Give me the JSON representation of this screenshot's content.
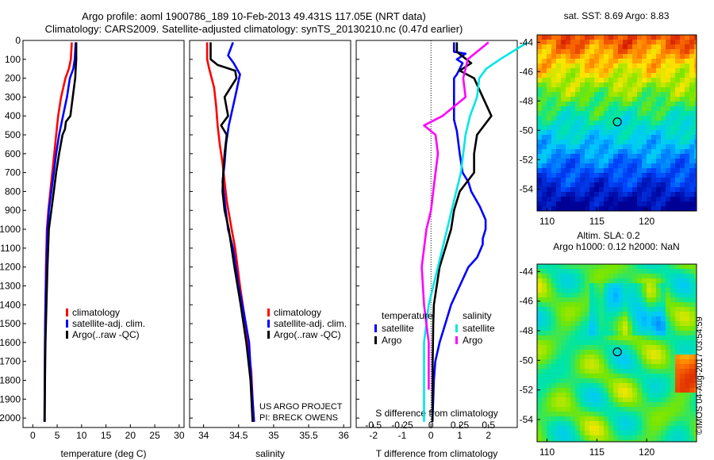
{
  "header": {
    "line1": "Argo profile: aoml 1900786_189 10-Feb-2013 49.431S 117.05E (NRT data)",
    "line2": "Climatology: CARS2009. Satellite-adjusted climatology: synTS_20130210.nc (0.47d earlier)"
  },
  "credit": {
    "line1": "US ARGO PROJECT",
    "line2": "PI: BRECK OWENS"
  },
  "stamp": "©IMOS 04-Aug-2017 03:54:59",
  "colors": {
    "red": "#ff0000",
    "blue": "#0000ff",
    "black": "#000000",
    "cyan": "#00e6e6",
    "magenta": "#ff00ff"
  },
  "chart_data": [
    {
      "type": "line",
      "xlabel": "temperature (deg C)",
      "ylabel": "",
      "xlim": [
        -2,
        31
      ],
      "ylim": [
        2050,
        0
      ],
      "xticks": [
        0,
        5,
        10,
        15,
        20,
        25,
        30
      ],
      "yticks": [
        0,
        100,
        200,
        300,
        400,
        500,
        600,
        700,
        800,
        900,
        1000,
        1100,
        1200,
        1300,
        1400,
        1500,
        1600,
        1700,
        1800,
        1900,
        2000
      ],
      "legend": [
        "climatology",
        "satellite-adj. clim.",
        "Argo(..raw -QC)"
      ],
      "series": [
        {
          "name": "climatology",
          "color": "red",
          "x": [
            8.0,
            7.8,
            7.4,
            6.7,
            5.8,
            5.2,
            4.8,
            4.4,
            4.0,
            3.6,
            3.2,
            2.9,
            2.7,
            2.6,
            2.5,
            2.45,
            2.4
          ],
          "y": [
            10,
            100,
            150,
            200,
            300,
            400,
            500,
            600,
            700,
            800,
            900,
            1000,
            1200,
            1400,
            1600,
            1800,
            2020
          ]
        },
        {
          "name": "satellite-adj. clim.",
          "color": "blue",
          "x": [
            8.8,
            8.6,
            8.3,
            7.6,
            7.0,
            6.2,
            5.4,
            4.8,
            4.3,
            3.8,
            3.3,
            3.0,
            2.8,
            2.6,
            2.5,
            2.45,
            2.4
          ],
          "y": [
            10,
            100,
            150,
            200,
            300,
            400,
            500,
            600,
            700,
            800,
            900,
            1000,
            1200,
            1400,
            1600,
            1800,
            2020
          ]
        },
        {
          "name": "Argo(..raw -QC)",
          "color": "black",
          "x": [
            8.9,
            8.9,
            8.8,
            8.7,
            8.2,
            7.7,
            6.8,
            6.6,
            6.1,
            5.4,
            4.8,
            4.3,
            3.8,
            3.3,
            3.0,
            2.8,
            2.6,
            2.5,
            2.45
          ],
          "y": [
            10,
            100,
            150,
            200,
            300,
            400,
            430,
            470,
            500,
            600,
            700,
            800,
            900,
            1000,
            1200,
            1400,
            1600,
            1800,
            2020
          ]
        }
      ]
    },
    {
      "type": "line",
      "xlabel": "salinity",
      "ylabel": "",
      "xlim": [
        33.8,
        36.1
      ],
      "ylim": [
        2050,
        0
      ],
      "xticks": [
        34,
        34.5,
        35,
        35.5,
        36
      ],
      "legend": [
        "climatology",
        "satellite-adj. clim.",
        "Argo(..raw -QC)"
      ],
      "series": [
        {
          "name": "climatology",
          "color": "red",
          "x": [
            34.05,
            34.05,
            34.08,
            34.15,
            34.18,
            34.2,
            34.23,
            34.27,
            34.3,
            34.33,
            34.4,
            34.45,
            34.52,
            34.58,
            34.63,
            34.68,
            34.7,
            34.72
          ],
          "y": [
            10,
            100,
            150,
            250,
            350,
            450,
            550,
            650,
            750,
            850,
            1000,
            1100,
            1300,
            1450,
            1600,
            1750,
            1900,
            2020
          ]
        },
        {
          "name": "satellite-adj. clim.",
          "color": "blue",
          "x": [
            34.42,
            34.35,
            34.43,
            34.52,
            34.45,
            34.36,
            34.32,
            34.3,
            34.27,
            34.3,
            34.35,
            34.42,
            34.5,
            34.58,
            34.65,
            34.68,
            34.72
          ],
          "y": [
            10,
            80,
            120,
            180,
            300,
            450,
            550,
            650,
            750,
            850,
            1000,
            1100,
            1300,
            1450,
            1600,
            1800,
            2020
          ]
        },
        {
          "name": "Argo(..raw -QC)",
          "color": "black",
          "x": [
            34.1,
            34.1,
            34.2,
            34.45,
            34.47,
            34.3,
            34.35,
            34.25,
            34.33,
            34.3,
            34.28,
            34.27,
            34.3,
            34.36,
            34.44,
            34.53,
            34.61,
            34.67,
            34.7
          ],
          "y": [
            10,
            100,
            130,
            160,
            200,
            300,
            400,
            450,
            500,
            600,
            700,
            800,
            900,
            1000,
            1200,
            1400,
            1600,
            1800,
            2020
          ]
        }
      ]
    },
    {
      "type": "line",
      "xlabel": "T difference from climatology",
      "x2label": "S difference from climatology",
      "xlim": [
        -2.6,
        3.0
      ],
      "ylim": [
        2050,
        0
      ],
      "xticks": [
        -2,
        -1,
        0,
        1,
        2
      ],
      "x2ticks": [
        -0.5,
        -0.25,
        0,
        0.25,
        0.5
      ],
      "legend_groups": [
        {
          "title": "temperature",
          "entries": [
            "satellite",
            "Argo"
          ]
        },
        {
          "title": "salinity",
          "entries": [
            "satellite",
            "Argo"
          ]
        }
      ],
      "series": [
        {
          "name": "temperature satellite",
          "color": "blue",
          "x": [
            0.8,
            0.8,
            1.2,
            0.9,
            1.1,
            1.0,
            0.9,
            0.8,
            0.8,
            0.8,
            0.8,
            0.9,
            1.0,
            1.1,
            1.3,
            1.4,
            1.7,
            1.9,
            1.9,
            1.8,
            1.8,
            1.6,
            1.3,
            1.0,
            0.7,
            0.5,
            0.3,
            0.15,
            0.1,
            0.08,
            0.05
          ],
          "y": [
            10,
            60,
            70,
            100,
            120,
            150,
            180,
            200,
            280,
            350,
            420,
            480,
            600,
            700,
            750,
            800,
            880,
            950,
            1000,
            1050,
            1080,
            1150,
            1200,
            1300,
            1400,
            1500,
            1600,
            1700,
            1800,
            1900,
            2020
          ]
        },
        {
          "name": "temperature Argo",
          "color": "black",
          "x": [
            0.9,
            0.9,
            1.4,
            1.0,
            1.5,
            1.8,
            2.1,
            1.6,
            1.5,
            1.5,
            1.0,
            0.8,
            0.7,
            0.5,
            0.3,
            0.2,
            0.1,
            0.08,
            0.06,
            0.05
          ],
          "y": [
            10,
            60,
            120,
            160,
            200,
            300,
            400,
            500,
            600,
            700,
            800,
            900,
            1000,
            1100,
            1200,
            1300,
            1400,
            1500,
            1700,
            2020
          ]
        },
        {
          "name": "salinity satellite",
          "color": "cyan",
          "x": [
            0.84,
            0.6,
            0.48,
            0.42,
            0.4,
            0.34,
            0.3,
            0.26,
            0.22,
            0.14,
            0.06,
            -0.02,
            -0.06,
            -0.06,
            -0.06
          ],
          "y": [
            10,
            100,
            150,
            200,
            300,
            400,
            500,
            700,
            800,
            1000,
            1200,
            1400,
            1600,
            1800,
            2020
          ]
        },
        {
          "name": "salinity Argo",
          "color": "magenta",
          "x": [
            0.5,
            0.32,
            0.3,
            0.28,
            0.3,
            0.1,
            -0.06,
            0.04,
            0.06,
            0.04,
            0.02,
            0.0,
            -0.04,
            -0.08,
            -0.06,
            -0.02,
            -0.02
          ],
          "y": [
            10,
            100,
            150,
            200,
            300,
            400,
            450,
            500,
            600,
            700,
            800,
            900,
            1000,
            1200,
            1400,
            1600,
            1850
          ]
        }
      ]
    },
    {
      "type": "heatmap",
      "title": "sat. SST: 8.69 Argo: 8.83",
      "xlim": [
        109,
        125
      ],
      "ylim": [
        -55.5,
        -43.5
      ],
      "xticks": [
        110,
        115,
        120
      ],
      "yticks": [
        -44,
        -46,
        -48,
        -50,
        -52,
        -54
      ],
      "marker": {
        "lon": 117.05,
        "lat": -49.43
      }
    },
    {
      "type": "heatmap",
      "title": "Altim. SLA: 0.2",
      "subtitle": "Argo h1000: 0.12 h2000: NaN",
      "xlim": [
        109,
        125
      ],
      "ylim": [
        -55.5,
        -43.5
      ],
      "xticks": [
        110,
        115,
        120
      ],
      "yticks": [
        -44,
        -46,
        -48,
        -50,
        -52,
        -54
      ],
      "marker": {
        "lon": 117.05,
        "lat": -49.43
      }
    }
  ]
}
